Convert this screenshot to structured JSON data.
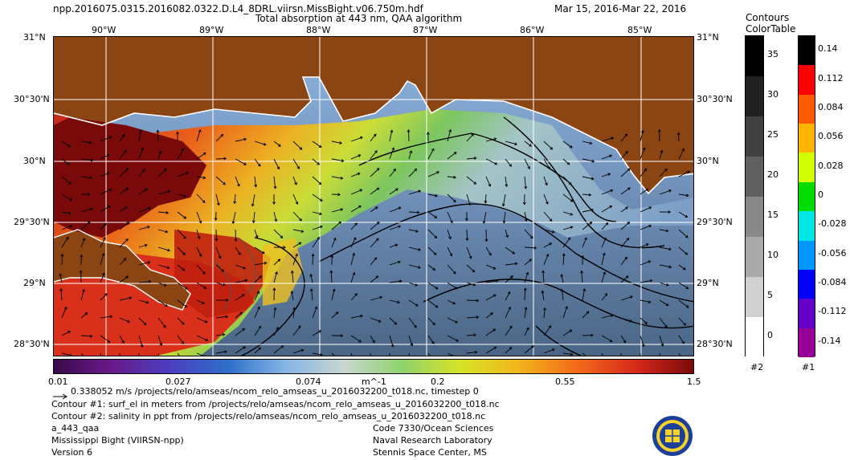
{
  "header": {
    "filename": "npp.2016075.0315.2016082.0322.D.L4_8DRL.viirsn.MissBight.v06.750m.hdf",
    "product_title": "Total absorption at 443 nm, QAA algorithm",
    "date_range": "Mar 15, 2016-Mar 22, 2016"
  },
  "map": {
    "lon_labels": [
      "90°W",
      "89°W",
      "88°W",
      "87°W",
      "86°W",
      "85°W"
    ],
    "lat_labels": [
      "31°N",
      "30°30'N",
      "30°N",
      "29°30'N",
      "29°N",
      "28°30'N"
    ],
    "land_color": "#8B4513",
    "coast_color": "#ffffff",
    "grid_color": "#ffffff",
    "vector_color": "#000000",
    "contour_color": "#000000"
  },
  "main_colorbar": {
    "tick_labels": [
      "0.01",
      "0.027",
      "0.074",
      "m^-1",
      "0.2",
      "0.55",
      "1.5"
    ],
    "colors": [
      "#3a0a4a",
      "#6a1a8a",
      "#4a3fbf",
      "#2f6fc9",
      "#86b6e6",
      "#c8d6cf",
      "#8fd26a",
      "#d7e326",
      "#f1b51a",
      "#f26a1a",
      "#d82a1a",
      "#7a0a0a"
    ]
  },
  "contours_legend": {
    "title_line1": "Contours",
    "title_line2": "ColorTable",
    "values": [
      "35",
      "30",
      "25",
      "20",
      "15",
      "10",
      "5",
      "0"
    ],
    "colors": [
      "#000000",
      "#202020",
      "#404040",
      "#606060",
      "#888888",
      "#aaaaaa",
      "#d0d0d0",
      "#ffffff"
    ],
    "footer": "#2"
  },
  "colortable1": {
    "values": [
      "0.14",
      "0.112",
      "0.084",
      "0.056",
      "0.028",
      "0",
      "-0.028",
      "-0.056",
      "-0.084",
      "-0.112",
      "-0.14"
    ],
    "colors": [
      "#000000",
      "#ff0000",
      "#ff5a00",
      "#ffb400",
      "#d2ff00",
      "#00dc00",
      "#00e6e6",
      "#0096ff",
      "#0000ff",
      "#6400c8",
      "#960096"
    ],
    "footer": "#1"
  },
  "footer": {
    "vector_scale": "0.338052 m/s /projects/relo/amseas/ncom_relo_amseas_u_2016032200_t018.nc, timestep 0",
    "contour1": "Contour #1: surf_el in meters from /projects/relo/amseas/ncom_relo_amseas_u_2016032200_t018.nc",
    "contour2": "Contour #2: salinity in ppt from /projects/relo/amseas/ncom_relo_amseas_u_2016032200_t018.nc",
    "product_code": "a_443_qaa",
    "region": "Mississippi Bight (VIIRSN-npp)",
    "version": "Version 6",
    "org_line1": "Code 7330/Ocean Sciences",
    "org_line2": "Naval Research Laboratory",
    "org_line3": "Stennis Space Center, MS"
  }
}
